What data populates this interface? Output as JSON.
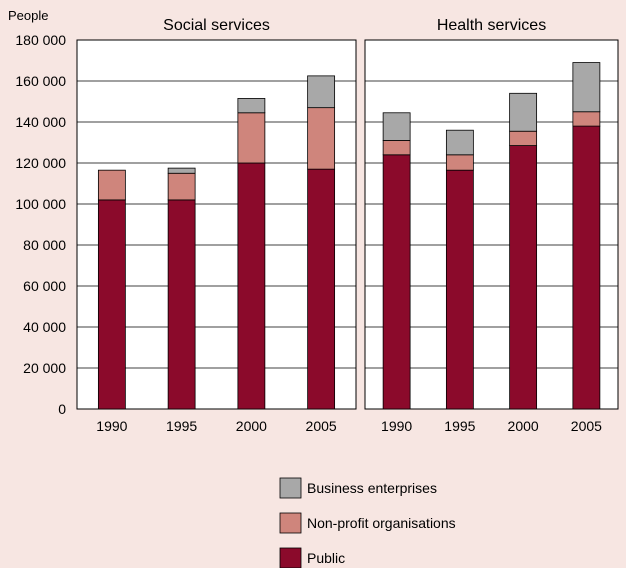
{
  "chart_data": [
    {
      "type": "bar",
      "stacked": true,
      "title": "Social services",
      "ylabel": "People",
      "ylim": [
        0,
        180000
      ],
      "yticks": [
        "0",
        "20 000",
        "40 000",
        "60 000",
        "80 000",
        "100 000",
        "120 000",
        "140 000",
        "160 000",
        "180 000"
      ],
      "categories": [
        "1990",
        "1995",
        "2000",
        "2005"
      ],
      "grid": true,
      "series": [
        {
          "name": "Public",
          "color": "#8b0a2b",
          "values": [
            102000,
            102000,
            120000,
            117000
          ]
        },
        {
          "name": "Non-profit organisations",
          "color": "#cf857c",
          "values": [
            14500,
            13000,
            24500,
            30000
          ]
        },
        {
          "name": "Business enterprises",
          "color": "#a8a8a8",
          "values": [
            0,
            2500,
            7000,
            15500
          ]
        }
      ]
    },
    {
      "type": "bar",
      "stacked": true,
      "title": "Health services",
      "ylim": [
        0,
        180000
      ],
      "categories": [
        "1990",
        "1995",
        "2000",
        "2005"
      ],
      "grid": true,
      "series": [
        {
          "name": "Public",
          "color": "#8b0a2b",
          "values": [
            124000,
            116500,
            128500,
            138000
          ]
        },
        {
          "name": "Non-profit organisations",
          "color": "#cf857c",
          "values": [
            7000,
            7500,
            7000,
            7000
          ]
        },
        {
          "name": "Business enterprises",
          "color": "#a8a8a8",
          "values": [
            13500,
            12000,
            18500,
            24000
          ]
        }
      ]
    }
  ],
  "legend": {
    "placement": "bottom",
    "items": [
      {
        "label": "Business enterprises",
        "color": "#a8a8a8"
      },
      {
        "label": "Non-profit organisations",
        "color": "#cf857c"
      },
      {
        "label": "Public",
        "color": "#8b0a2b"
      }
    ]
  }
}
